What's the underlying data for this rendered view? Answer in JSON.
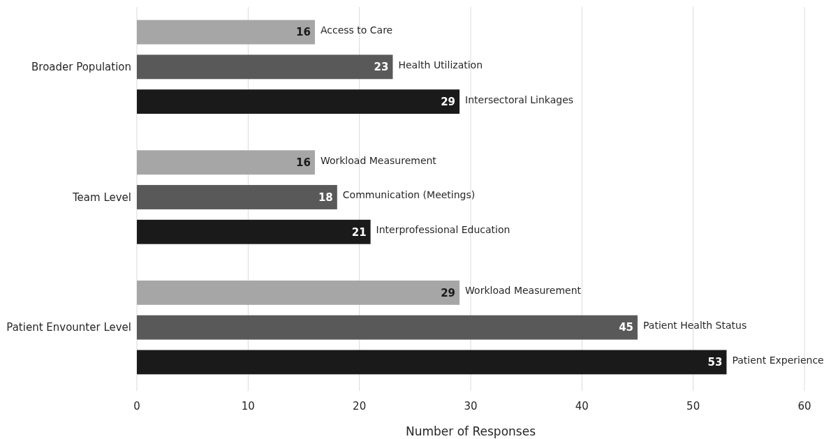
{
  "chart_data": {
    "type": "bar",
    "orientation": "horizontal",
    "xlabel": "Number of Responses",
    "categories": [
      "Broader Population",
      "Team Level",
      "Patient Envounter Level"
    ],
    "series": [
      {
        "color": "#a6a6a6",
        "values": [
          16,
          16,
          29
        ]
      },
      {
        "color": "#595959",
        "values": [
          23,
          18,
          45
        ]
      },
      {
        "color": "#1a1a1a",
        "values": [
          29,
          21,
          53
        ]
      }
    ],
    "xlim": [
      0,
      60
    ],
    "xticks": [
      0,
      10,
      20,
      30,
      40,
      50,
      60
    ],
    "grid": "x",
    "data_labels": true,
    "annotations": [
      "Access to Care",
      "Health Utilization",
      "Intersectoral Linkages",
      "Workload Measurement",
      "Communication (Meetings)",
      "Interprofessional Education",
      "Workload Measurement",
      "Patient Health Status",
      "Patient Experience"
    ]
  }
}
